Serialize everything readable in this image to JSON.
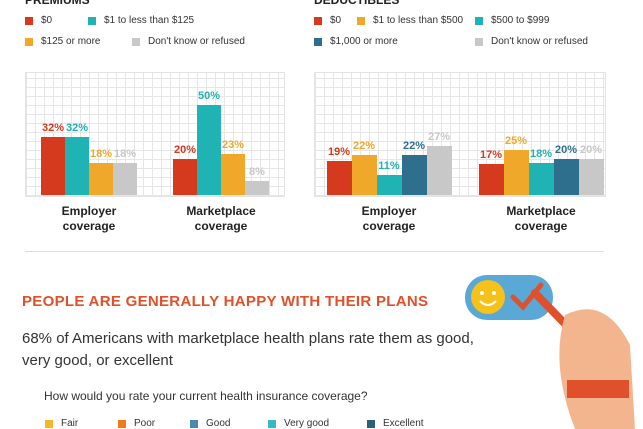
{
  "chart_data": [
    {
      "type": "bar",
      "title": "PREMIUMS",
      "categories": [
        "Employer coverage",
        "Marketplace coverage"
      ],
      "series": [
        {
          "name": "$0",
          "color": "#d63a1e",
          "values": [
            32,
            20
          ],
          "value_labels": [
            "32%",
            "20%"
          ]
        },
        {
          "name": "$1 to less than $125",
          "color": "#1fb3b3",
          "values": [
            32,
            50
          ],
          "value_labels": [
            "32%",
            "50%"
          ]
        },
        {
          "name": "$125 or more",
          "color": "#f0a82a",
          "values": [
            18,
            23
          ],
          "value_labels": [
            "18%",
            "23%"
          ]
        },
        {
          "name": "Don't know or refused",
          "color": "#c8c8c8",
          "values": [
            18,
            8
          ],
          "value_labels": [
            "18%",
            "8%"
          ]
        }
      ]
    },
    {
      "type": "bar",
      "title": "DEDUCTIBLES",
      "categories": [
        "Employer coverage",
        "Marketplace coverage"
      ],
      "series": [
        {
          "name": "$0",
          "color": "#d63a1e",
          "values": [
            19,
            17
          ],
          "value_labels": [
            "19%",
            "17%"
          ]
        },
        {
          "name": "$1 to less than $500",
          "color": "#f0a82a",
          "values": [
            22,
            25
          ],
          "value_labels": [
            "22%",
            "25%"
          ]
        },
        {
          "name": "$500 to $999",
          "color": "#1fb3b3",
          "values": [
            11,
            18
          ],
          "value_labels": [
            "11%",
            "18%"
          ]
        },
        {
          "name": "$1,000 or more",
          "color": "#2e6f8e",
          "values": [
            22,
            20
          ],
          "value_labels": [
            "22%",
            "20%"
          ]
        },
        {
          "name": "Don't know or refused",
          "color": "#c8c8c8",
          "values": [
            27,
            20
          ],
          "value_labels": [
            "27%",
            "20%"
          ]
        }
      ]
    }
  ],
  "section": {
    "heading": "PEOPLE ARE GENERALLY HAPPY WITH THEIR PLANS",
    "subtitle": "68% of Americans with marketplace health plans rate them as good, very good, or excellent",
    "question": "How would you rate your current health insurance coverage?",
    "legend": [
      {
        "name": "Fair",
        "color": "#f0b82a"
      },
      {
        "name": "Poor",
        "color": "#f07a1e"
      },
      {
        "name": "Good",
        "color": "#4a8ab0"
      },
      {
        "name": "Very good",
        "color": "#3ab8c0"
      },
      {
        "name": "Excellent",
        "color": "#2e5f7a"
      }
    ]
  }
}
